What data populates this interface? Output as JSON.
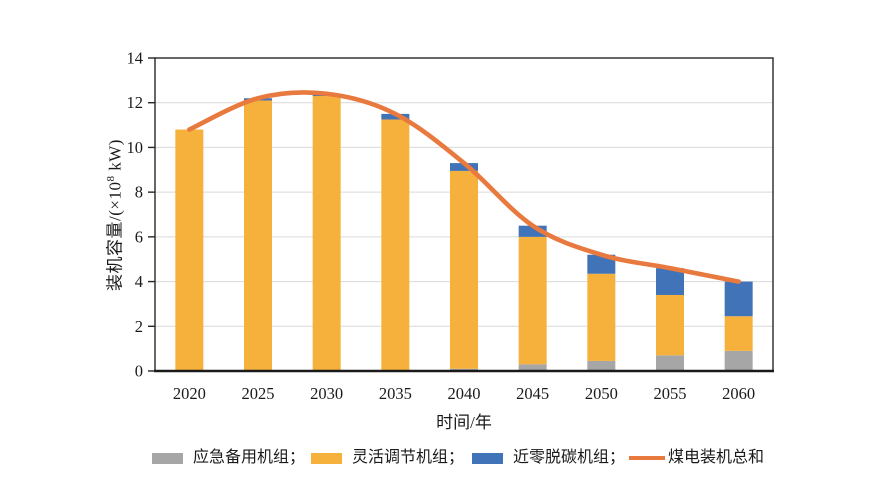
{
  "figure": {
    "background": "#ffffff",
    "text_color": "#1a1a1a",
    "axis_color": "#262626",
    "grid_color": "#d9d9d9"
  },
  "ylabel_parts": {
    "prefix": "装机容量/(×10",
    "sup": "8",
    "suffix": " kW)"
  },
  "legend": {
    "items": [
      {
        "label": "应急备用机组；",
        "color": "#A6A6A6",
        "shape": "rect"
      },
      {
        "label": "灵活调节机组；",
        "color": "#F6B13C",
        "shape": "rect"
      },
      {
        "label": "近零脱碳机组；",
        "color": "#4173B8",
        "shape": "rect"
      },
      {
        "label": "煤电装机总和",
        "color": "#E8793F",
        "shape": "line"
      }
    ]
  },
  "chart_data": {
    "type": "bar",
    "stacked": true,
    "title": "",
    "xlabel": "时间/年",
    "ylabel": "装机容量/(×10⁸ kW)",
    "categories": [
      "2020",
      "2025",
      "2030",
      "2035",
      "2040",
      "2045",
      "2050",
      "2055",
      "2060"
    ],
    "series": [
      {
        "name": "应急备用机组",
        "type": "bar",
        "color": "#A6A6A6",
        "values": [
          0,
          0,
          0,
          0,
          0.1,
          0.3,
          0.45,
          0.7,
          0.9
        ]
      },
      {
        "name": "灵活调节机组",
        "type": "bar",
        "color": "#F6B13C",
        "values": [
          10.8,
          12.1,
          12.3,
          11.25,
          8.85,
          5.7,
          3.9,
          2.7,
          1.55
        ]
      },
      {
        "name": "近零脱碳机组",
        "type": "bar",
        "color": "#4173B8",
        "values": [
          0,
          0.1,
          0.1,
          0.25,
          0.35,
          0.5,
          0.85,
          1.2,
          1.55
        ]
      },
      {
        "name": "煤电装机总和",
        "type": "line",
        "color": "#E8793F",
        "values": [
          10.8,
          12.2,
          12.4,
          11.5,
          9.3,
          6.5,
          5.2,
          4.6,
          4.0
        ]
      }
    ],
    "ylim": [
      0,
      14
    ],
    "yticks": [
      0,
      2,
      4,
      6,
      8,
      10,
      12,
      14
    ],
    "grid": "horizontal",
    "legend_position": "bottom"
  }
}
